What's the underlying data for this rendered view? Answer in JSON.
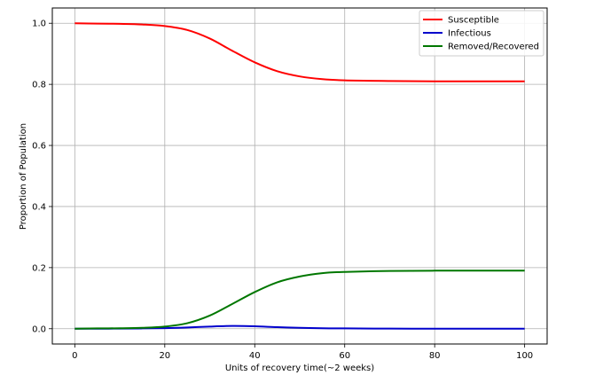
{
  "chart_data": {
    "type": "line",
    "title": "",
    "xlabel": "Units of recovery time(~2 weeks)",
    "ylabel": "Proportion of Population",
    "xlim": [
      -5,
      105
    ],
    "ylim": [
      -0.05,
      1.05
    ],
    "xticks": [
      0,
      20,
      40,
      60,
      80,
      100
    ],
    "yticks": [
      0.0,
      0.2,
      0.4,
      0.6,
      0.8,
      1.0
    ],
    "xtick_labels": [
      "0",
      "20",
      "40",
      "60",
      "80",
      "100"
    ],
    "ytick_labels": [
      "0.0",
      "0.2",
      "0.4",
      "0.6",
      "0.8",
      "1.0"
    ],
    "grid": true,
    "legend_position": "top-right",
    "x": [
      0,
      5,
      10,
      15,
      20,
      25,
      30,
      35,
      40,
      45,
      50,
      55,
      60,
      70,
      80,
      90,
      100
    ],
    "series": [
      {
        "name": "Susceptible",
        "color": "#ff0000",
        "values": [
          1.0,
          0.999,
          0.998,
          0.996,
          0.991,
          0.978,
          0.95,
          0.91,
          0.872,
          0.843,
          0.826,
          0.817,
          0.813,
          0.811,
          0.81,
          0.81,
          0.81
        ]
      },
      {
        "name": "Infectious",
        "color": "#0000cc",
        "values": [
          0.0,
          0.0,
          0.0005,
          0.001,
          0.002,
          0.004,
          0.007,
          0.009,
          0.008,
          0.005,
          0.003,
          0.0015,
          0.001,
          0.0003,
          0.0001,
          0.0,
          0.0
        ]
      },
      {
        "name": "Removed/Recovered",
        "color": "#007700",
        "values": [
          0.0,
          0.001,
          0.0015,
          0.003,
          0.007,
          0.018,
          0.043,
          0.081,
          0.12,
          0.152,
          0.171,
          0.182,
          0.186,
          0.189,
          0.19,
          0.19,
          0.19
        ]
      }
    ]
  }
}
